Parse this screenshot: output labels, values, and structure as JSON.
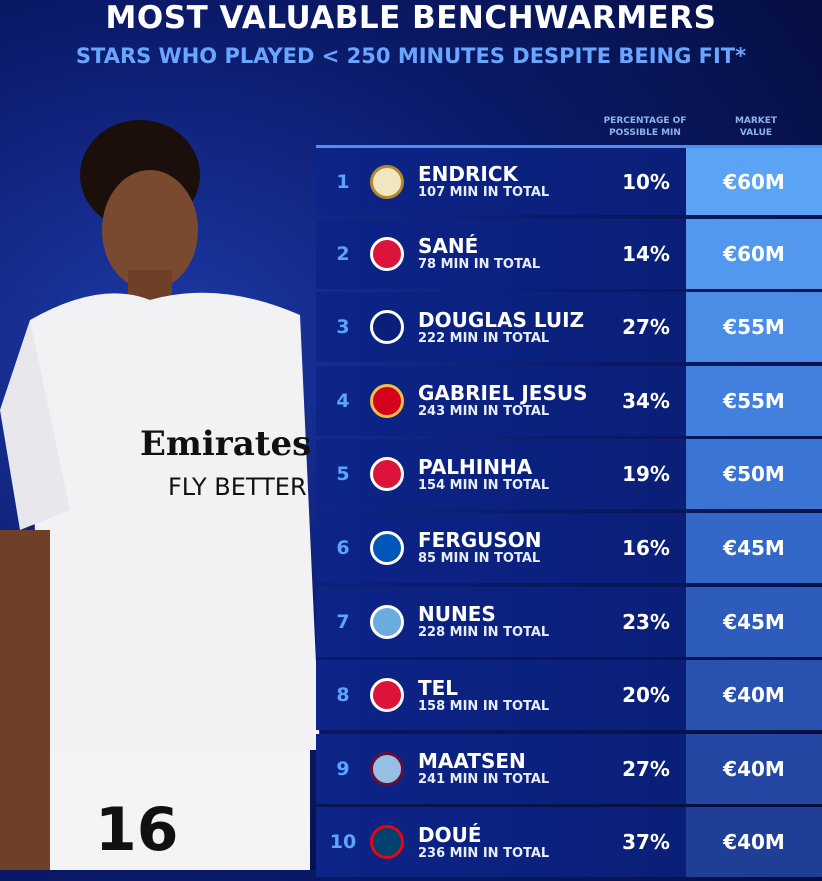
{
  "title": "MOST VALUABLE BENCHWARMERS",
  "subtitle": "STARS WHO PLAYED < 250 MINUTES DESPITE BEING FIT*",
  "headers": {
    "percentage": "PERCENTAGE OF POSSIBLE MIN",
    "value": "MARKET VALUE"
  },
  "shirt": {
    "sponsor": "Emirates",
    "slogan": "FLY BETTER",
    "number": "16"
  },
  "rows": [
    {
      "rank": "1",
      "club": "real-madrid-crest",
      "name": "ENDRICK",
      "minutes": "107 MIN IN TOTAL",
      "pct": "10%",
      "value": "€60M",
      "color": "#5ba4f5"
    },
    {
      "rank": "2",
      "club": "bayern-crest",
      "name": "SANÉ",
      "minutes": "78 MIN IN TOTAL",
      "pct": "14%",
      "value": "€60M",
      "color": "#5298ee"
    },
    {
      "rank": "3",
      "club": "juventus-crest",
      "name": "DOUGLAS LUIZ",
      "minutes": "222 MIN IN TOTAL",
      "pct": "27%",
      "value": "€55M",
      "color": "#4a8ce6"
    },
    {
      "rank": "4",
      "club": "arsenal-crest",
      "name": "GABRIEL JESUS",
      "minutes": "243 MIN IN TOTAL",
      "pct": "34%",
      "value": "€55M",
      "color": "#4280de"
    },
    {
      "rank": "5",
      "club": "bayern-crest",
      "name": "PALHINHA",
      "minutes": "154 MIN IN TOTAL",
      "pct": "19%",
      "value": "€50M",
      "color": "#3a74d4"
    },
    {
      "rank": "6",
      "club": "brighton-crest",
      "name": "FERGUSON",
      "minutes": "85 MIN IN TOTAL",
      "pct": "16%",
      "value": "€45M",
      "color": "#3368c9"
    },
    {
      "rank": "7",
      "club": "man-city-crest",
      "name": "NUNES",
      "minutes": "228 MIN IN TOTAL",
      "pct": "23%",
      "value": "€45M",
      "color": "#2d5cbd"
    },
    {
      "rank": "8",
      "club": "bayern-crest",
      "name": "TEL",
      "minutes": "158 MIN IN TOTAL",
      "pct": "20%",
      "value": "€40M",
      "color": "#2851b0"
    },
    {
      "rank": "9",
      "club": "aston-villa-crest",
      "name": "MAATSEN",
      "minutes": "241 MIN IN TOTAL",
      "pct": "27%",
      "value": "€40M",
      "color": "#2347a3"
    },
    {
      "rank": "10",
      "club": "psg-crest",
      "name": "DOUÉ",
      "minutes": "236 MIN IN TOTAL",
      "pct": "37%",
      "value": "€40M",
      "color": "#1f3e96"
    }
  ]
}
